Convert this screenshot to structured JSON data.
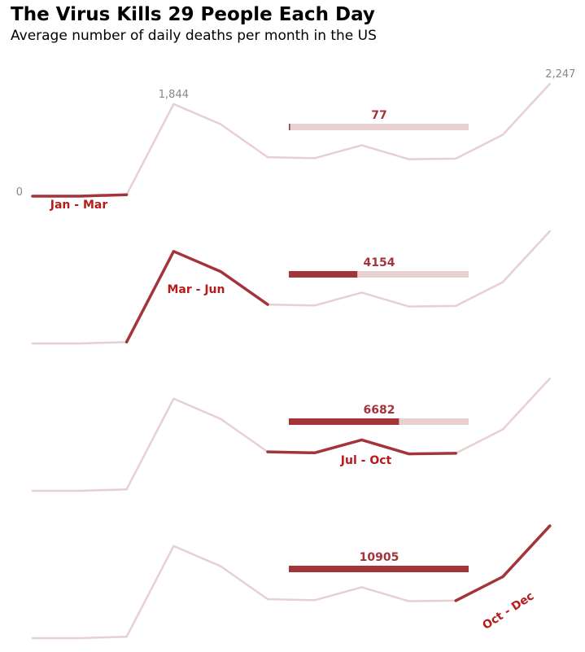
{
  "title": "The Virus Kills 29 People Each Day",
  "subtitle": "Average number of daily deaths per month in the US",
  "colors": {
    "accent": "#a3343a",
    "faded": "#e8d0d0",
    "label": "#b71c1c",
    "axis_text": "#888888"
  },
  "chart_data": {
    "type": "line",
    "x": [
      1,
      2,
      3,
      4,
      5,
      6,
      7,
      8,
      9,
      10,
      11,
      12
    ],
    "series": [
      {
        "values": [
          0,
          0,
          30,
          1844,
          1440,
          780,
          760,
          1020,
          740,
          750,
          1230,
          2247
        ]
      }
    ],
    "ylim": [
      0,
      2247
    ],
    "y_annotations": {
      "min_label": "0",
      "peak_label": "1,844",
      "max_label": "2,247"
    },
    "panels": [
      {
        "label": "Jan - Mar",
        "start": 1,
        "end": 3,
        "total": "77",
        "total_value": 77
      },
      {
        "label": "Mar - Jun",
        "start": 3,
        "end": 6,
        "total": "4154",
        "total_value": 4154
      },
      {
        "label": "Jul - Oct",
        "start": 6,
        "end": 10,
        "total": "6682",
        "total_value": 6682
      },
      {
        "label": "Oct - Dec",
        "start": 10,
        "end": 12,
        "total": "10905",
        "total_value": 10905
      }
    ],
    "bar_max": 10905
  }
}
